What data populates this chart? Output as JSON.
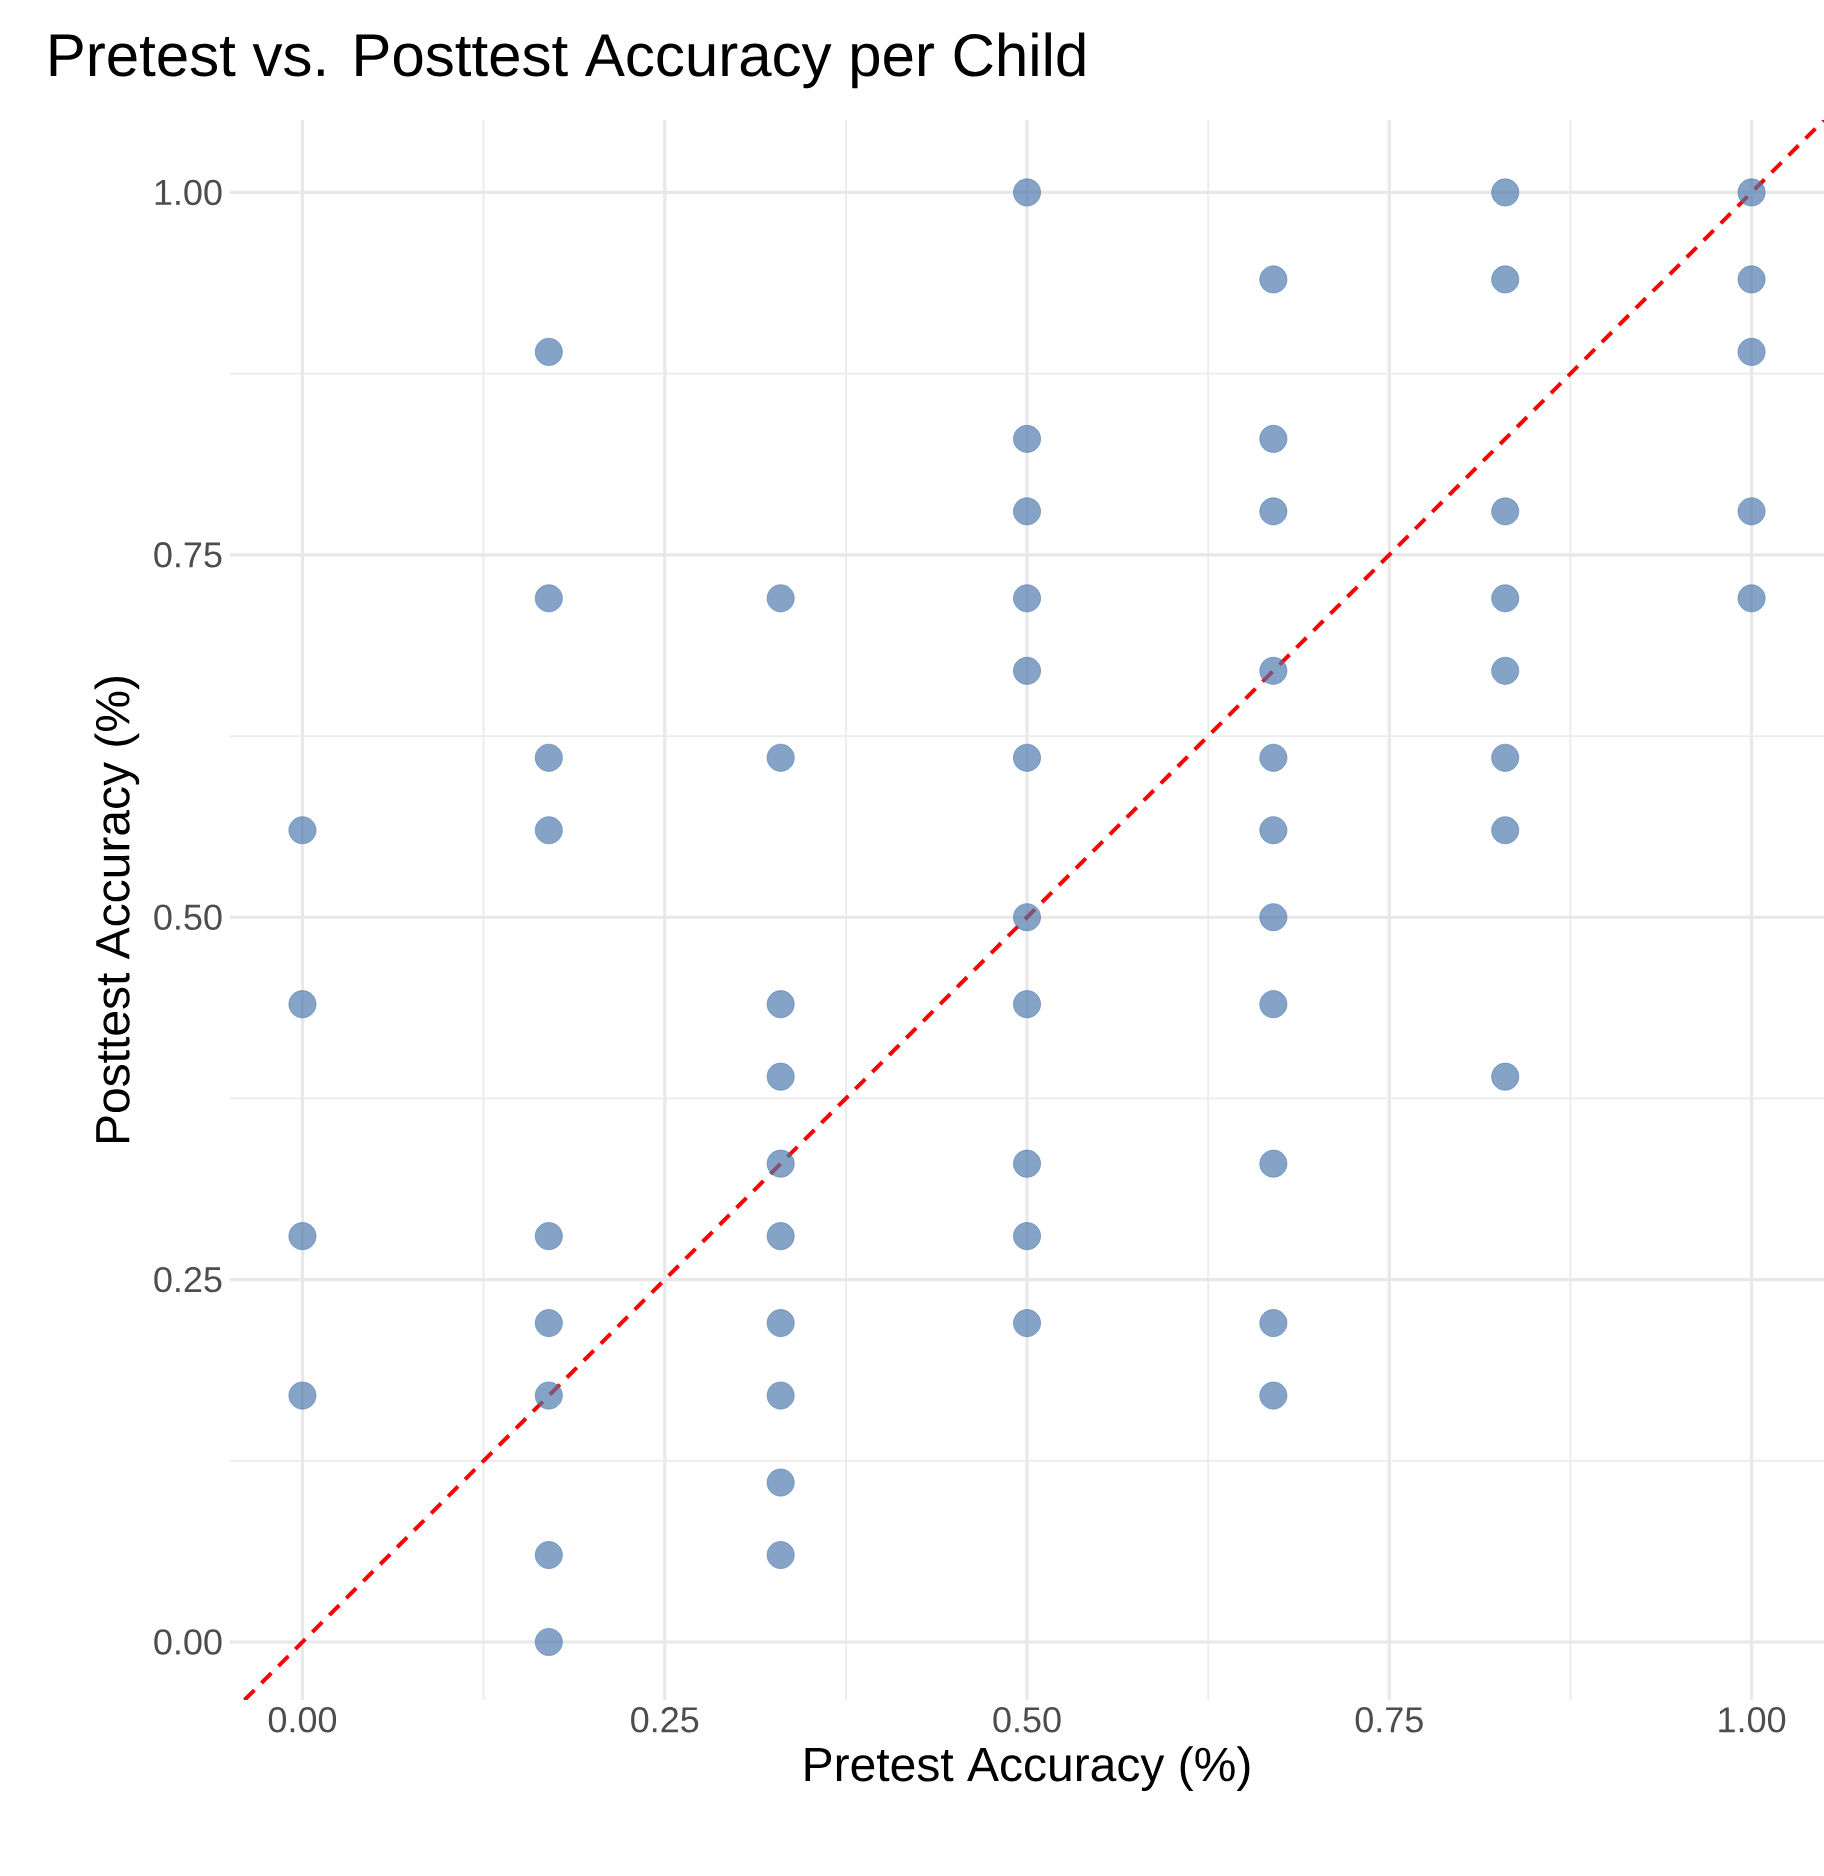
{
  "chart_data": {
    "type": "scatter",
    "title": "Pretest vs. Posttest Accuracy per Child",
    "xlabel": "Pretest Accuracy (%)",
    "ylabel": "Posttest Accuracy (%)",
    "xlim": [
      -0.05,
      1.05
    ],
    "ylim": [
      -0.04,
      1.05
    ],
    "xticks": [
      {
        "value": 0,
        "label": "0.00"
      },
      {
        "value": 0.25,
        "label": "0.25"
      },
      {
        "value": 0.5,
        "label": "0.50"
      },
      {
        "value": 0.75,
        "label": "0.75"
      },
      {
        "value": 1,
        "label": "1.00"
      }
    ],
    "yticks": [
      {
        "value": 0,
        "label": "0.00"
      },
      {
        "value": 0.25,
        "label": "0.25"
      },
      {
        "value": 0.5,
        "label": "0.50"
      },
      {
        "value": 0.75,
        "label": "0.75"
      },
      {
        "value": 1,
        "label": "1.00"
      }
    ],
    "grid": true,
    "series": [
      {
        "type": "scatter",
        "color": "#4a78ad",
        "marker": "circle",
        "x": [
          0,
          0,
          0,
          0,
          0.17,
          0.17,
          0.17,
          0.17,
          0.17,
          0.17,
          0.17,
          0.17,
          0.17,
          0.33,
          0.33,
          0.33,
          0.33,
          0.33,
          0.33,
          0.33,
          0.33,
          0.33,
          0.33,
          0.5,
          0.5,
          0.5,
          0.5,
          0.5,
          0.5,
          0.5,
          0.5,
          0.5,
          0.5,
          0.5,
          0.67,
          0.67,
          0.67,
          0.67,
          0.67,
          0.67,
          0.67,
          0.67,
          0.67,
          0.67,
          0.67,
          0.83,
          0.83,
          0.83,
          0.83,
          0.83,
          0.83,
          0.83,
          0.83,
          1,
          1,
          1,
          1,
          1
        ],
        "values": [
          0.56,
          0.44,
          0.28,
          0.17,
          0.89,
          0.72,
          0.61,
          0.56,
          0.28,
          0.22,
          0.17,
          0.06,
          0,
          0.72,
          0.61,
          0.44,
          0.39,
          0.33,
          0.28,
          0.22,
          0.17,
          0.11,
          0.06,
          1,
          0.83,
          0.78,
          0.72,
          0.67,
          0.61,
          0.5,
          0.44,
          0.33,
          0.28,
          0.22,
          0.94,
          0.83,
          0.78,
          0.67,
          0.61,
          0.56,
          0.5,
          0.44,
          0.33,
          0.22,
          0.17,
          1,
          0.94,
          0.78,
          0.72,
          0.67,
          0.61,
          0.56,
          0.39,
          1,
          0.94,
          0.89,
          0.78,
          0.72
        ]
      },
      {
        "type": "line",
        "color": "#ff0000",
        "marker": "none",
        "line_style": "dashed",
        "x": [
          -0.04,
          1.05
        ],
        "values": [
          -0.04,
          1.05
        ]
      }
    ]
  }
}
